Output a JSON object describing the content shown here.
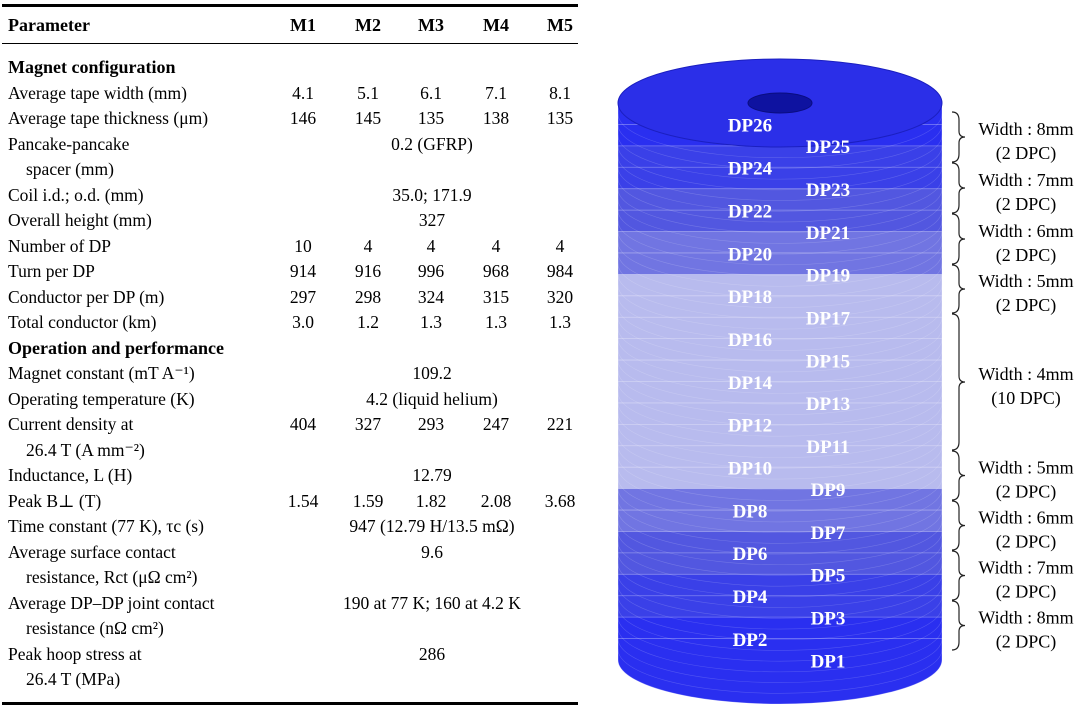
{
  "table": {
    "headers": [
      "Parameter",
      "M1",
      "M2",
      "M3",
      "M4",
      "M5"
    ],
    "rows": [
      {
        "type": "section",
        "label": "Magnet configuration"
      },
      {
        "label": "Average tape width (mm)",
        "values": [
          "4.1",
          "5.1",
          "6.1",
          "7.1",
          "8.1"
        ]
      },
      {
        "label": "Average tape thickness (μm)",
        "values": [
          "146",
          "145",
          "135",
          "138",
          "135"
        ]
      },
      {
        "label": "Pancake-pancake",
        "label2": "spacer (mm)",
        "span": "0.2 (GFRP)"
      },
      {
        "label": "Coil i.d.; o.d. (mm)",
        "span": "35.0; 171.9"
      },
      {
        "label": "Overall height (mm)",
        "span": "327"
      },
      {
        "label": "Number of DP",
        "values": [
          "10",
          "4",
          "4",
          "4",
          "4"
        ]
      },
      {
        "label": "Turn per DP",
        "values": [
          "914",
          "916",
          "996",
          "968",
          "984"
        ]
      },
      {
        "label": "Conductor per DP (m)",
        "values": [
          "297",
          "298",
          "324",
          "315",
          "320"
        ]
      },
      {
        "label": "Total conductor (km)",
        "values": [
          "3.0",
          "1.2",
          "1.3",
          "1.3",
          "1.3"
        ]
      },
      {
        "type": "section",
        "label": "Operation and performance"
      },
      {
        "label": "Magnet constant (mT A⁻¹)",
        "span": "109.2"
      },
      {
        "label": "Operating temperature (K)",
        "span": "4.2 (liquid helium)"
      },
      {
        "label": "Current density at",
        "label2": "26.4 T (A mm⁻²)",
        "values": [
          "404",
          "327",
          "293",
          "247",
          "221"
        ]
      },
      {
        "label": "Inductance, L (H)",
        "span": "12.79"
      },
      {
        "label": "Peak B⊥ (T)",
        "values": [
          "1.54",
          "1.59",
          "1.82",
          "2.08",
          "3.68"
        ]
      },
      {
        "label": "Time constant (77 K), τc (s)",
        "span": "947 (12.79 H/13.5 mΩ)"
      },
      {
        "label": "Average surface contact",
        "label2": "resistance, Rct (μΩ cm²)",
        "span": "9.6"
      },
      {
        "label": "Average DP–DP joint contact",
        "label2": "resistance (nΩ cm²)",
        "span": "190 at 77 K; 160 at 4.2 K"
      },
      {
        "label": "Peak hoop stress at",
        "label2": "26.4 T (MPa)",
        "span": "286"
      }
    ]
  },
  "figure": {
    "dp_labels": [
      "DP1",
      "DP2",
      "DP3",
      "DP4",
      "DP5",
      "DP6",
      "DP7",
      "DP8",
      "DP9",
      "DP10",
      "DP11",
      "DP12",
      "DP13",
      "DP14",
      "DP15",
      "DP16",
      "DP17",
      "DP18",
      "DP19",
      "DP20",
      "DP21",
      "DP22",
      "DP23",
      "DP24",
      "DP25",
      "DP26"
    ],
    "annotations": [
      {
        "line1": "Width : 8mm",
        "line2": "(2 DPC)"
      },
      {
        "line1": "Width : 7mm",
        "line2": "(2 DPC)"
      },
      {
        "line1": "Width : 6mm",
        "line2": "(2 DPC)"
      },
      {
        "line1": "Width : 5mm",
        "line2": "(2 DPC)"
      },
      {
        "line1": "Width : 4mm",
        "line2": "(10 DPC)"
      },
      {
        "line1": "Width : 5mm",
        "line2": "(2 DPC)"
      },
      {
        "line1": "Width : 6mm",
        "line2": "(2 DPC)"
      },
      {
        "line1": "Width : 7mm",
        "line2": "(2 DPC)"
      },
      {
        "line1": "Width : 8mm",
        "line2": "(2 DPC)"
      }
    ],
    "colors": {
      "w8": "#2a2ff0",
      "w7": "#3a40e8",
      "w6": "#5257e0",
      "w5": "#7175e2",
      "w4": "#b8bbee",
      "top": "#2b2fe8"
    }
  }
}
